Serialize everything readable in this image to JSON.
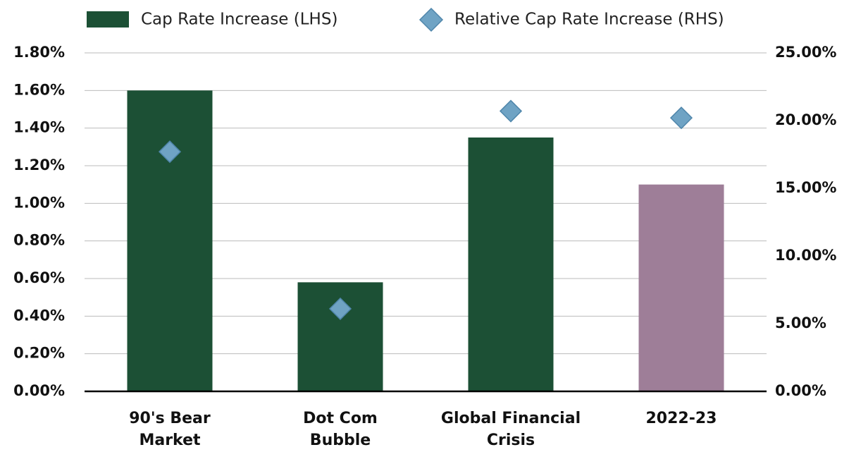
{
  "chart_data": {
    "type": "bar",
    "categories": [
      "90's Bear Market",
      "Dot Com Bubble",
      "Global Financial Crisis",
      "2022-23"
    ],
    "series": [
      {
        "name": "Cap Rate Increase (LHS)",
        "type": "bar",
        "color": "#1c5035",
        "colors": [
          "#1c5035",
          "#1c5035",
          "#1c5035",
          "#9e7e98"
        ],
        "values": [
          1.6,
          0.58,
          1.35,
          1.1
        ]
      },
      {
        "name": "Relative Cap Rate Increase (RHS)",
        "type": "scatter",
        "axis": "y2",
        "color": "#6fa3c4",
        "values": [
          17.7,
          6.1,
          20.7,
          20.2
        ]
      }
    ],
    "ylim": [
      0,
      1.8
    ],
    "yticks": [
      {
        "value": 0,
        "label": "0.00%"
      },
      {
        "value": 0.2,
        "label": "0.20%"
      },
      {
        "value": 0.4,
        "label": "0.40%"
      },
      {
        "value": 0.6,
        "label": "0.60%"
      },
      {
        "value": 0.8,
        "label": "0.80%"
      },
      {
        "value": 1.0,
        "label": "1.00%"
      },
      {
        "value": 1.2,
        "label": "1.20%"
      },
      {
        "value": 1.4,
        "label": "1.40%"
      },
      {
        "value": 1.6,
        "label": "1.60%"
      },
      {
        "value": 1.8,
        "label": "1.80%"
      }
    ],
    "y2lim": [
      0,
      25
    ],
    "y2ticks": [
      {
        "value": 0,
        "label": "0.00%"
      },
      {
        "value": 5,
        "label": "5.00%"
      },
      {
        "value": 10,
        "label": "10.00%"
      },
      {
        "value": 15,
        "label": "15.00%"
      },
      {
        "value": 20,
        "label": "20.00%"
      },
      {
        "value": 25,
        "label": "25.00%"
      }
    ],
    "grid": true,
    "legend": "top"
  }
}
